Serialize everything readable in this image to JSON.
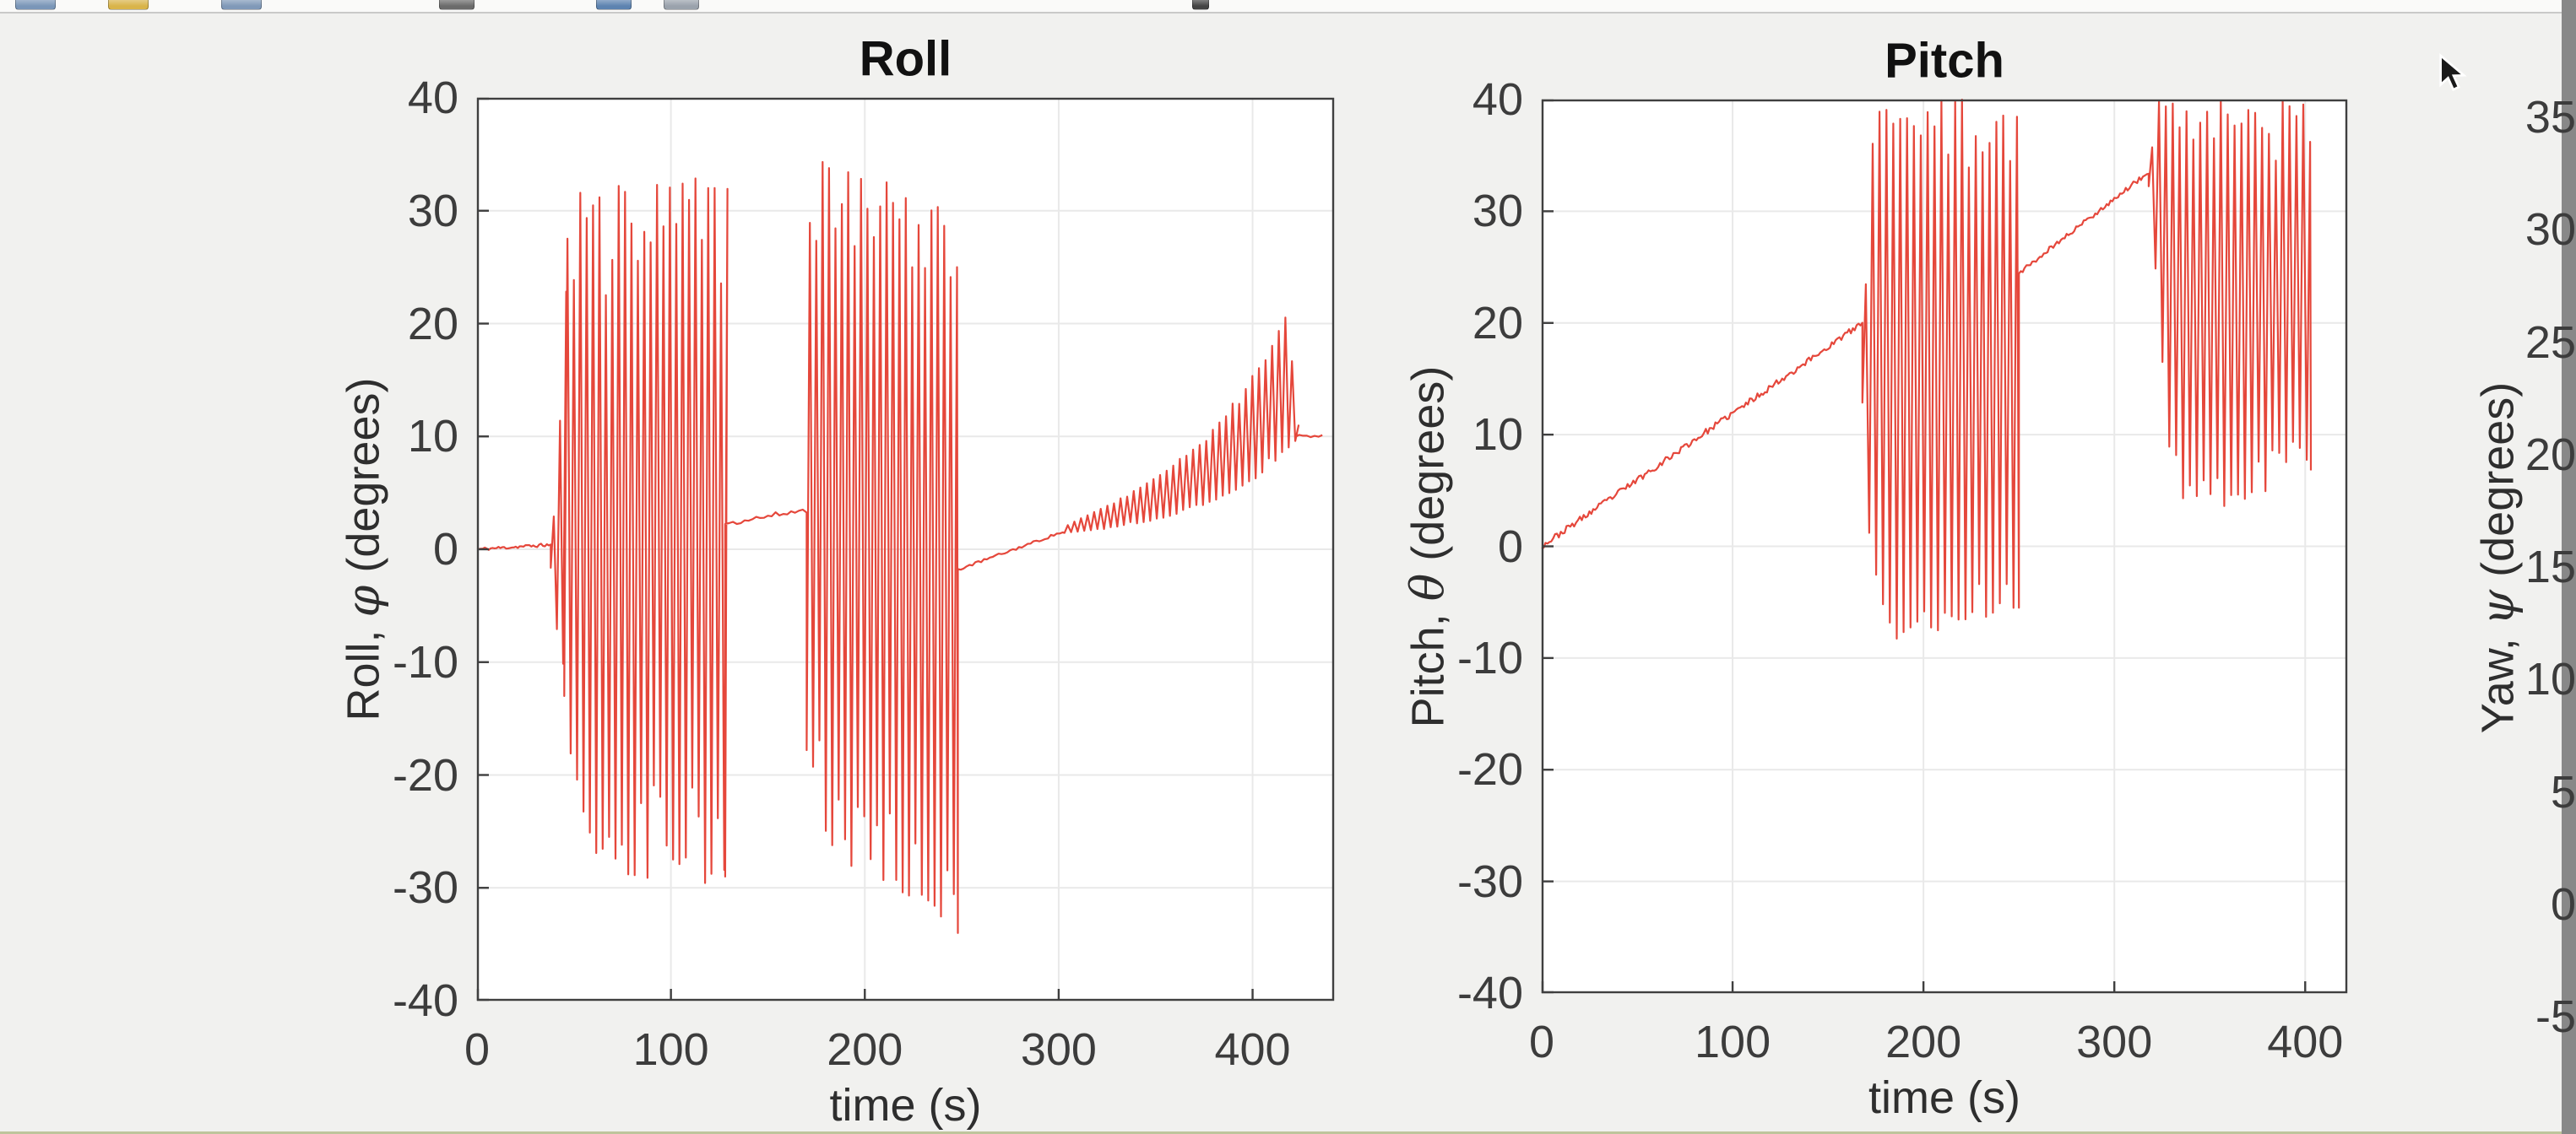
{
  "window": {
    "toolbar_icons": [
      {
        "name": "toolbar-icon-1",
        "color": "#7a96b8"
      },
      {
        "name": "toolbar-icon-2",
        "color": "#d9b44a"
      },
      {
        "name": "toolbar-icon-3",
        "color": "#8099b8"
      },
      {
        "name": "toolbar-icon-4",
        "color": "#6b6b6b"
      },
      {
        "name": "toolbar-icon-5",
        "color": "#5d83b0"
      },
      {
        "name": "toolbar-icon-6",
        "color": "#9aa2ac"
      },
      {
        "name": "toolbar-icon-7",
        "color": "#444444"
      }
    ]
  },
  "figure": {
    "bg": "#f1f1ef",
    "plot_bg": "#ffffff",
    "grid_color": "#e9e9e9",
    "axis_color": "#3f3f3f",
    "tick_label_color": "#3c3c3c",
    "line_color": "#e5473b"
  },
  "chart_data": [
    {
      "id": "roll",
      "type": "line",
      "title": "Roll",
      "xlabel": "time (s)",
      "ylabel_prefix": "Roll, ",
      "ylabel_symbol": "φ",
      "ylabel_suffix": " (degrees)",
      "xlim": [
        0,
        442
      ],
      "ylim": [
        -40,
        40
      ],
      "xticks": [
        0,
        100,
        200,
        300,
        400
      ],
      "yticks": [
        40,
        30,
        20,
        10,
        0,
        -10,
        -20,
        -30,
        -40
      ],
      "grid": true,
      "seed": 11,
      "segments": [
        {
          "type": "ramp",
          "t0": 0,
          "t1": 38,
          "v0": 0,
          "v1": 0.4,
          "noise": 0.15,
          "dt": 1
        },
        {
          "type": "osc",
          "t0": 38,
          "t1": 45,
          "period": 3.2,
          "jitter_frac": 0.3,
          "top": [
            [
              38,
              3
            ],
            [
              40,
              7
            ],
            [
              43,
              18
            ],
            [
              45,
              26
            ]
          ],
          "bot": [
            [
              38,
              -2
            ],
            [
              40,
              -6
            ],
            [
              43,
              -11
            ],
            [
              45,
              -13
            ]
          ]
        },
        {
          "type": "osc",
          "t0": 45,
          "t1": 128,
          "period": 3.3,
          "jitter_frac": 0.4,
          "top": [
            [
              45,
              28
            ],
            [
              52,
              32
            ],
            [
              90,
              32.5
            ],
            [
              128,
              33.2
            ]
          ],
          "bot": [
            [
              45,
              -14
            ],
            [
              55,
              -27
            ],
            [
              75,
              -29.5
            ],
            [
              110,
              -30
            ],
            [
              128,
              -29
            ]
          ]
        },
        {
          "type": "ramp",
          "t0": 128,
          "t1": 170,
          "v0": 2.3,
          "v1": 3.5,
          "noise": 0.25,
          "dt": 2
        },
        {
          "type": "osc",
          "t0": 170,
          "t1": 248,
          "period": 3.3,
          "jitter_frac": 0.4,
          "top": [
            [
              170,
              30
            ],
            [
              175,
              34.5
            ],
            [
              205,
              33
            ],
            [
              235,
              30.5
            ],
            [
              248,
              28.5
            ]
          ],
          "bot": [
            [
              170,
              -18
            ],
            [
              180,
              -27
            ],
            [
              215,
              -30
            ],
            [
              242,
              -34.5
            ],
            [
              248,
              -34
            ]
          ]
        },
        {
          "type": "ramp",
          "t0": 248,
          "t1": 303,
          "v0": -1.8,
          "v1": 1.6,
          "noise": 0.12,
          "dt": 1.5
        },
        {
          "type": "osc",
          "t0": 303,
          "t1": 422,
          "period": 3.4,
          "jitter_frac": 0.25,
          "top": [
            [
              303,
              2.2
            ],
            [
              325,
              4
            ],
            [
              350,
              6.5
            ],
            [
              375,
              10
            ],
            [
              395,
              14.5
            ],
            [
              408,
              18
            ],
            [
              416,
              21
            ],
            [
              422,
              11
            ]
          ],
          "bot": [
            [
              303,
              1.4
            ],
            [
              325,
              1.8
            ],
            [
              350,
              2.6
            ],
            [
              375,
              3.8
            ],
            [
              395,
              5.5
            ],
            [
              408,
              7
            ],
            [
              416,
              8.5
            ],
            [
              422,
              9.6
            ]
          ]
        },
        {
          "type": "flat",
          "t0": 422,
          "t1": 436,
          "value": 10,
          "noise": 0.15,
          "dt": 2
        }
      ]
    },
    {
      "id": "pitch",
      "type": "line",
      "title": "Pitch",
      "xlabel": "time (s)",
      "ylabel_prefix": "Pitch, ",
      "ylabel_symbol": "θ",
      "ylabel_suffix": " (degrees)",
      "xlim": [
        0,
        422
      ],
      "ylim": [
        -40,
        40
      ],
      "xticks": [
        0,
        100,
        200,
        300,
        400
      ],
      "yticks": [
        40,
        30,
        20,
        10,
        0,
        -10,
        -20,
        -30,
        -40
      ],
      "grid": true,
      "seed": 23,
      "segments": [
        {
          "type": "ramp",
          "t0": 0,
          "t1": 168,
          "v0": 0,
          "v1": 20,
          "noise": 0.28,
          "dt": 1
        },
        {
          "type": "osc",
          "t0": 168,
          "t1": 250,
          "period": 3.6,
          "jitter_frac": 0.35,
          "top": [
            [
              168,
              24
            ],
            [
              171,
              40
            ],
            [
              250,
              40
            ]
          ],
          "bot": [
            [
              168,
              12
            ],
            [
              173,
              -3
            ],
            [
              186,
              -8.5
            ],
            [
              212,
              -8
            ],
            [
              235,
              -6.5
            ],
            [
              250,
              -5.5
            ]
          ]
        },
        {
          "type": "ramp",
          "t0": 250,
          "t1": 318,
          "v0": 24.5,
          "v1": 33.5,
          "noise": 0.22,
          "dt": 1
        },
        {
          "type": "osc",
          "t0": 318,
          "t1": 403,
          "period": 3.6,
          "jitter_frac": 0.35,
          "top": [
            [
              318,
              36
            ],
            [
              320,
              40
            ],
            [
              403,
              40
            ]
          ],
          "bot": [
            [
              318,
              32
            ],
            [
              323,
              18
            ],
            [
              329,
              7
            ],
            [
              336,
              3.8
            ],
            [
              355,
              3.4
            ],
            [
              375,
              4.5
            ],
            [
              390,
              5.5
            ],
            [
              403,
              6.8
            ]
          ]
        }
      ]
    },
    {
      "id": "yaw",
      "type": "line",
      "partial": true,
      "note_visible": "only y-axis labels visible at right edge of screenshot",
      "ylabel_prefix": "Yaw, ",
      "ylabel_symbol": "ψ",
      "ylabel_suffix": " (degrees)",
      "yticks": [
        35,
        30,
        25,
        20,
        15,
        10,
        5,
        0,
        -5
      ]
    }
  ]
}
